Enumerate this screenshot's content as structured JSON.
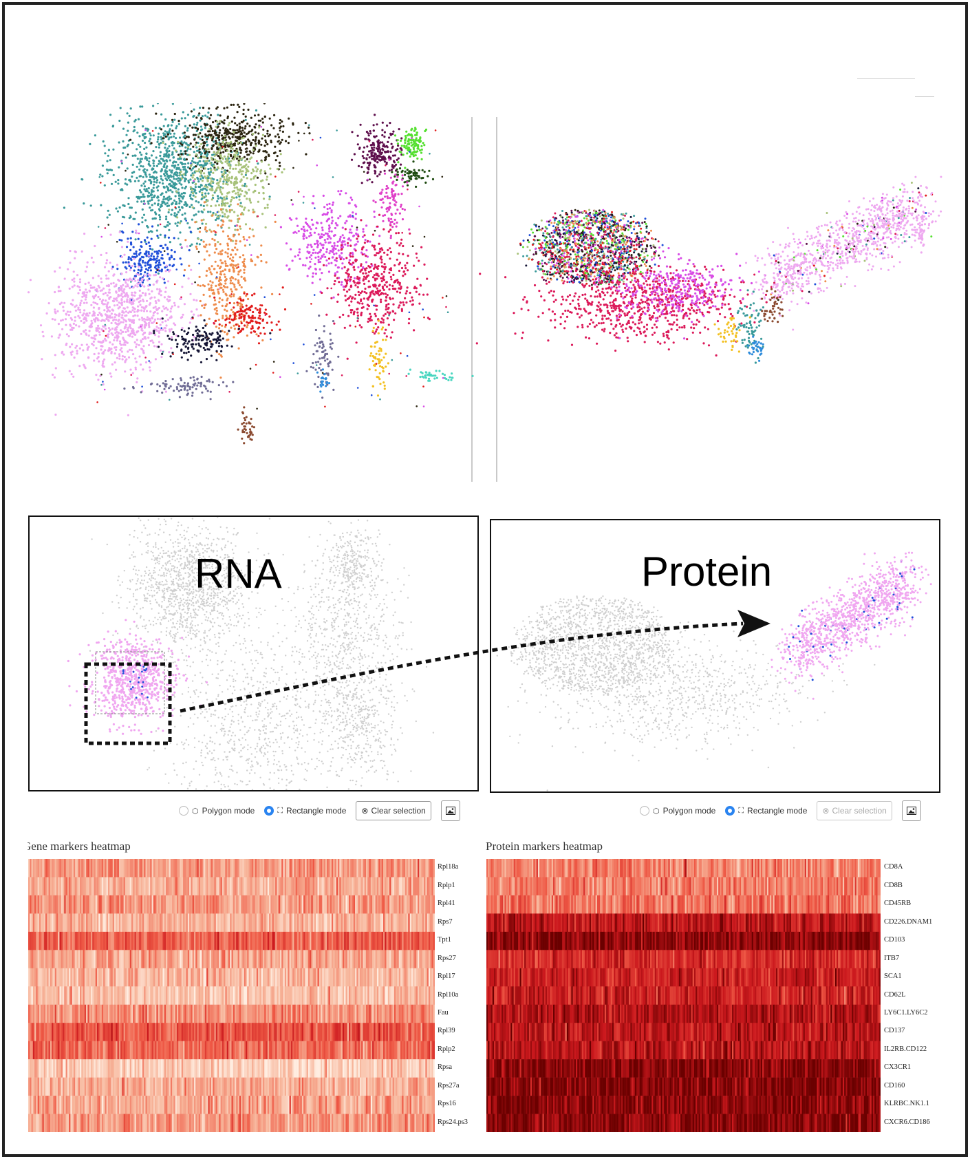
{
  "rna_panel": {
    "title": "RNA"
  },
  "protein_panel": {
    "title": "Protein"
  },
  "controls_left": {
    "polygon_label": "Polygon mode",
    "rectangle_label": "Rectangle mode",
    "clear_label": "Clear selection",
    "polygon_selected": false,
    "rectangle_selected": true,
    "clear_enabled": true
  },
  "controls_right": {
    "polygon_label": "Polygon mode",
    "rectangle_label": "Rectangle mode",
    "clear_label": "Clear selection",
    "polygon_selected": false,
    "rectangle_selected": true,
    "clear_enabled": false
  },
  "gene_heatmap": {
    "title": "Gene markers heatmap",
    "genes": [
      "Rpl18a",
      "Rplp1",
      "Rpl41",
      "Rps7",
      "Tpt1",
      "Rps27",
      "Rpl17",
      "Rpl10a",
      "Fau",
      "Rpl39",
      "Rplp2",
      "Rpsa",
      "Rps27a",
      "Rps16",
      "Rps24.ps3"
    ],
    "row_levels": [
      0.45,
      0.35,
      0.45,
      0.35,
      0.7,
      0.4,
      0.3,
      0.25,
      0.5,
      0.75,
      0.65,
      0.2,
      0.35,
      0.4,
      0.45
    ]
  },
  "protein_heatmap": {
    "title": "Protein markers heatmap",
    "proteins": [
      "CD8A",
      "CD8B",
      "CD45RB",
      "CD226.DNAM1",
      "CD103",
      "ITB7",
      "SCA1",
      "CD62L",
      "LY6C1.LY6C2",
      "CD137",
      "IL2RB.CD122",
      "CX3CR1",
      "CD160",
      "KLRBC.NK1.1",
      "CXCR6.CD186"
    ],
    "row_levels": [
      0.55,
      0.55,
      0.6,
      1.1,
      1.3,
      0.95,
      1.0,
      1.0,
      1.15,
      1.1,
      1.1,
      1.3,
      1.3,
      1.3,
      1.3
    ]
  },
  "colors": {
    "selection_pink": "#f0a6f0",
    "background_gray": "#cfcfcf",
    "radio_blue": "#2a84f0",
    "heat_low": "#f7b59a",
    "heat_high": "#6b0000"
  }
}
